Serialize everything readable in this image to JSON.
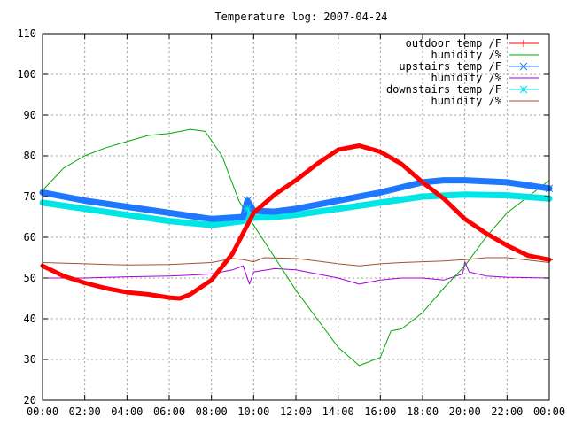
{
  "chart_data": {
    "type": "line",
    "title": "Temperature log: 2007-04-24",
    "xlabel": "",
    "ylabel": "",
    "xlim": [
      0,
      24
    ],
    "ylim": [
      20,
      110
    ],
    "x_ticks": [
      "00:00",
      "02:00",
      "04:00",
      "06:00",
      "08:00",
      "10:00",
      "12:00",
      "14:00",
      "16:00",
      "18:00",
      "20:00",
      "22:00",
      "00:00"
    ],
    "y_ticks": [
      20,
      30,
      40,
      50,
      60,
      70,
      80,
      90,
      100,
      110
    ],
    "grid": true,
    "legend_position": "top-right",
    "x_unit": "hour of day",
    "series": [
      {
        "name": "outdoor temp /F",
        "color": "#ff0000",
        "marker": "+",
        "points": [
          [
            0,
            53
          ],
          [
            1,
            50.5
          ],
          [
            2,
            48.8
          ],
          [
            3,
            47.5
          ],
          [
            4,
            46.5
          ],
          [
            5,
            46
          ],
          [
            6,
            45.2
          ],
          [
            6.5,
            45
          ],
          [
            7,
            46
          ],
          [
            8,
            49.5
          ],
          [
            9,
            56
          ],
          [
            10,
            66
          ],
          [
            11,
            70.5
          ],
          [
            12,
            74
          ],
          [
            13,
            78
          ],
          [
            14,
            81.5
          ],
          [
            15,
            82.5
          ],
          [
            16,
            81
          ],
          [
            17,
            78
          ],
          [
            18,
            73.5
          ],
          [
            19,
            69.5
          ],
          [
            20,
            64.5
          ],
          [
            21,
            61
          ],
          [
            22,
            58
          ],
          [
            23,
            55.5
          ],
          [
            24,
            54.5
          ]
        ]
      },
      {
        "name": "humidity /%",
        "color": "#00aa00",
        "marker": "none",
        "points": [
          [
            0,
            71.5
          ],
          [
            1,
            77
          ],
          [
            2,
            80
          ],
          [
            3,
            82
          ],
          [
            4,
            83.5
          ],
          [
            5,
            85
          ],
          [
            6,
            85.5
          ],
          [
            7,
            86.5
          ],
          [
            7.7,
            86
          ],
          [
            8.5,
            80
          ],
          [
            9.3,
            69
          ],
          [
            10,
            63
          ],
          [
            11,
            55
          ],
          [
            12,
            47
          ],
          [
            13,
            40
          ],
          [
            14,
            33
          ],
          [
            15,
            28.5
          ],
          [
            16,
            30.5
          ],
          [
            16.5,
            37
          ],
          [
            17,
            37.5
          ],
          [
            18,
            41.5
          ],
          [
            19,
            47.5
          ],
          [
            20,
            53
          ],
          [
            21,
            60
          ],
          [
            22,
            66
          ],
          [
            23,
            70
          ],
          [
            24,
            74
          ]
        ]
      },
      {
        "name": "upstairs temp /F",
        "color": "#1e78ff",
        "marker": "x",
        "points": [
          [
            0,
            71
          ],
          [
            2,
            69
          ],
          [
            4,
            67.5
          ],
          [
            6,
            66
          ],
          [
            8,
            64.5
          ],
          [
            9.5,
            65
          ],
          [
            9.7,
            69
          ],
          [
            10,
            66.5
          ],
          [
            11,
            66.3
          ],
          [
            12,
            67
          ],
          [
            14,
            69
          ],
          [
            16,
            71
          ],
          [
            18,
            73.5
          ],
          [
            19,
            74
          ],
          [
            20,
            74
          ],
          [
            22,
            73.5
          ],
          [
            24,
            72
          ]
        ]
      },
      {
        "name": "humidity /%",
        "color": "#aa00dd",
        "marker": "none",
        "points": [
          [
            0,
            50
          ],
          [
            2,
            50
          ],
          [
            4,
            50.3
          ],
          [
            6,
            50.5
          ],
          [
            7,
            50.7
          ],
          [
            8,
            51
          ],
          [
            9,
            52
          ],
          [
            9.5,
            53
          ],
          [
            9.8,
            48.5
          ],
          [
            10,
            51.5
          ],
          [
            11,
            52.3
          ],
          [
            12,
            52
          ],
          [
            13,
            51
          ],
          [
            14,
            50
          ],
          [
            15,
            48.5
          ],
          [
            16,
            49.5
          ],
          [
            17,
            50
          ],
          [
            18,
            50
          ],
          [
            19,
            49.5
          ],
          [
            19.9,
            51
          ],
          [
            20,
            54
          ],
          [
            20.2,
            51.5
          ],
          [
            21,
            50.5
          ],
          [
            22,
            50.2
          ],
          [
            24,
            50
          ]
        ]
      },
      {
        "name": "downstairs temp /F",
        "color": "#00e5e5",
        "marker": "*",
        "points": [
          [
            0,
            68.5
          ],
          [
            2,
            67
          ],
          [
            4,
            65.5
          ],
          [
            6,
            64
          ],
          [
            8,
            63
          ],
          [
            9.5,
            64
          ],
          [
            9.8,
            66
          ],
          [
            10,
            64.8
          ],
          [
            11,
            65
          ],
          [
            12,
            65.5
          ],
          [
            14,
            67
          ],
          [
            16,
            68.5
          ],
          [
            18,
            70
          ],
          [
            20,
            70.5
          ],
          [
            22,
            70.3
          ],
          [
            24,
            69.5
          ]
        ]
      },
      {
        "name": "humidity /%",
        "color": "#a0522d",
        "marker": "none",
        "points": [
          [
            0,
            53.8
          ],
          [
            2,
            53.5
          ],
          [
            4,
            53.2
          ],
          [
            6,
            53.3
          ],
          [
            8,
            53.8
          ],
          [
            9,
            54.8
          ],
          [
            9.5,
            54.5
          ],
          [
            10,
            54
          ],
          [
            10.5,
            55
          ],
          [
            12,
            54.8
          ],
          [
            13,
            54.2
          ],
          [
            14,
            53.5
          ],
          [
            15,
            53
          ],
          [
            16,
            53.5
          ],
          [
            17,
            53.8
          ],
          [
            18,
            54
          ],
          [
            19,
            54.2
          ],
          [
            20,
            54.5
          ],
          [
            21,
            55
          ],
          [
            22,
            55
          ],
          [
            24,
            53.8
          ]
        ]
      }
    ]
  }
}
